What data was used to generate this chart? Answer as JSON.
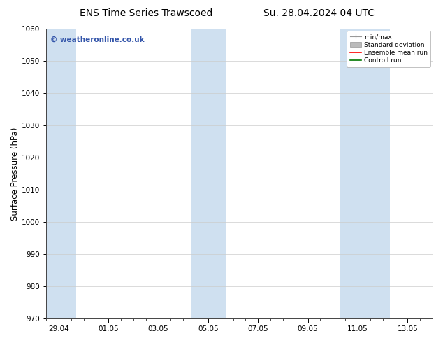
{
  "title_left": "ENS Time Series Trawscoed",
  "title_right": "Su. 28.04.2024 04 UTC",
  "ylabel": "Surface Pressure (hPa)",
  "ylim": [
    970,
    1060
  ],
  "yticks": [
    970,
    980,
    990,
    1000,
    1010,
    1020,
    1030,
    1040,
    1050,
    1060
  ],
  "xtick_labels": [
    "29.04",
    "01.05",
    "03.05",
    "05.05",
    "07.05",
    "09.05",
    "11.05",
    "13.05"
  ],
  "band_color": "#cfe0f0",
  "background_color": "#ffffff",
  "grid_color": "#cccccc",
  "watermark_text": "© weatheronline.co.uk",
  "watermark_color": "#3355aa",
  "legend_items": [
    {
      "label": "min/max",
      "color": "#999999"
    },
    {
      "label": "Standard deviation",
      "color": "#bbbbbb"
    },
    {
      "label": "Ensemble mean run",
      "color": "#ff0000"
    },
    {
      "label": "Controll run",
      "color": "#007700"
    }
  ],
  "title_fontsize": 10,
  "tick_fontsize": 7.5,
  "ylabel_fontsize": 8.5
}
